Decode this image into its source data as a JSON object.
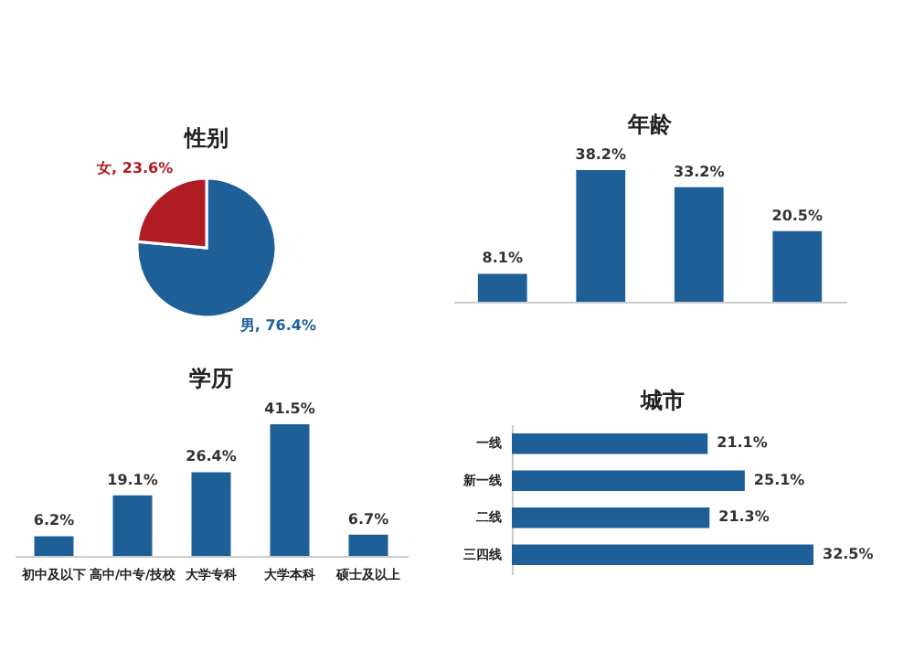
{
  "chart_data": [
    {
      "type": "pie",
      "title": "性别",
      "categories": [
        "男",
        "女"
      ],
      "values": [
        76.4,
        23.6
      ],
      "colors": [
        "#1f5f98",
        "#b01c24"
      ],
      "value_labels": [
        "76.4%",
        "23.6%"
      ]
    },
    {
      "type": "bar",
      "title": "年龄",
      "categories": [
        null,
        null,
        null,
        null
      ],
      "values": [
        8.1,
        38.2,
        33.2,
        20.5
      ],
      "color": "#1f5f98",
      "value_labels": [
        "8.1%",
        "38.2%",
        "33.2%",
        "20.5%"
      ]
    },
    {
      "type": "bar",
      "title": "学历",
      "categories": [
        "初中及以下",
        "高中/中专/技校",
        "大学专科",
        "大学本科",
        "硕士及以上"
      ],
      "values": [
        6.2,
        19.1,
        26.4,
        41.5,
        6.7
      ],
      "color": "#1f5f98",
      "value_labels": [
        "6.2%",
        "19.1%",
        "26.4%",
        "41.5%",
        "6.7%"
      ]
    },
    {
      "type": "bar",
      "orientation": "horizontal",
      "title": "城市",
      "categories": [
        "一线",
        "新一线",
        "二线",
        "三四线"
      ],
      "values": [
        21.1,
        25.1,
        21.3,
        32.5
      ],
      "color": "#1f5f98",
      "value_labels": [
        "21.1%",
        "25.1%",
        "21.3%",
        "32.5%"
      ]
    }
  ]
}
